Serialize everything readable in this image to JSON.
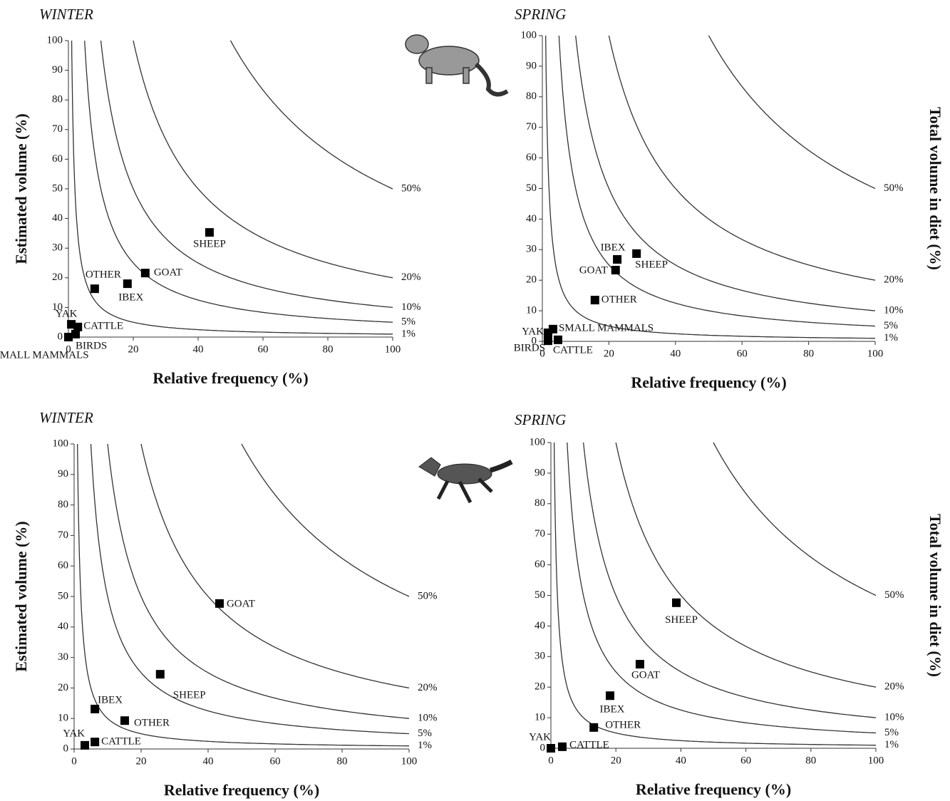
{
  "chart_data": [
    {
      "type": "scatter",
      "title": "WINTER",
      "xlabel": "Relative frequency (%)",
      "ylabel": "Estimated volume (%)",
      "xlim": [
        0,
        100
      ],
      "ylim": [
        0,
        100
      ],
      "xticks": [
        0,
        20,
        40,
        60,
        80,
        100
      ],
      "yticks": [
        0,
        10,
        20,
        30,
        40,
        50,
        60,
        70,
        80,
        90,
        100
      ],
      "color": "#000000",
      "isolines": [
        {
          "value": 50,
          "label": "50%"
        },
        {
          "value": 20,
          "label": "20%"
        },
        {
          "value": 10,
          "label": "10%"
        },
        {
          "value": 5,
          "label": "5%"
        },
        {
          "value": 1,
          "label": "1%"
        }
      ],
      "labels": [
        "SHEEP",
        "GOAT",
        "IBEX",
        "OTHER",
        "YAK",
        "CATTLE",
        "BIRDS",
        "SMALL MAMMALS"
      ],
      "x": [
        43.5,
        23.7,
        18.2,
        8.1,
        0.9,
        2.9,
        2.2,
        0
      ],
      "values": [
        35.3,
        21.6,
        18,
        16.3,
        4.3,
        3.4,
        1,
        0
      ]
    },
    {
      "type": "scatter",
      "title": "SPRING",
      "xlabel": "Relative frequency (%)",
      "isoline_label": "Total volume in diet  (%)",
      "xlim": [
        0,
        100
      ],
      "ylim": [
        0,
        100
      ],
      "xticks": [
        0,
        20,
        40,
        60,
        80,
        100
      ],
      "yticks": [
        0,
        10,
        20,
        30,
        40,
        50,
        60,
        70,
        80,
        90,
        100
      ],
      "color": "#000000",
      "isolines": [
        {
          "value": 50,
          "label": "50%"
        },
        {
          "value": 20,
          "label": "20%"
        },
        {
          "value": 10,
          "label": "10%"
        },
        {
          "value": 5,
          "label": "5%"
        },
        {
          "value": 1,
          "label": "1%"
        }
      ],
      "labels": [
        "IBEX",
        "SHEEP",
        "GOAT",
        "OTHER",
        "YAK",
        "SMALL MAMMALS",
        "BIRDS",
        "CATTLE"
      ],
      "x": [
        22.5,
        28.3,
        22,
        15.8,
        1.7,
        3.2,
        1.7,
        4.7
      ],
      "values": [
        26.8,
        28.7,
        23.3,
        13.5,
        2.8,
        4,
        0.2,
        0.5
      ]
    },
    {
      "type": "scatter",
      "title": "WINTER",
      "xlabel": "Relative frequency (%)",
      "ylabel": "Estimated volume (%)",
      "xlim": [
        0,
        100
      ],
      "ylim": [
        0,
        100
      ],
      "xticks": [
        0,
        20,
        40,
        60,
        80,
        100
      ],
      "yticks": [
        0,
        10,
        20,
        30,
        40,
        50,
        60,
        70,
        80,
        90,
        100
      ],
      "color": "#000000",
      "isolines": [
        {
          "value": 50,
          "label": "50%"
        },
        {
          "value": 20,
          "label": "20%"
        },
        {
          "value": 10,
          "label": "10%"
        },
        {
          "value": 5,
          "label": "5%"
        },
        {
          "value": 1,
          "label": "1%"
        }
      ],
      "labels": [
        "GOAT",
        "SHEEP",
        "IBEX",
        "OTHER",
        "YAK",
        "CATTLE"
      ],
      "x": [
        43.4,
        25.7,
        6.2,
        15.1,
        3.2,
        6.2
      ],
      "values": [
        47.7,
        24.5,
        13.1,
        9.3,
        1.2,
        2.3
      ]
    },
    {
      "type": "scatter",
      "title": "SPRING",
      "xlabel": "Relative frequency (%)",
      "isoline_label": "Total volume in diet  (%)",
      "xlim": [
        0,
        100
      ],
      "ylim": [
        0,
        100
      ],
      "xticks": [
        0,
        20,
        40,
        60,
        80,
        100
      ],
      "yticks": [
        0,
        10,
        20,
        30,
        40,
        50,
        60,
        70,
        80,
        90,
        100
      ],
      "color": "#000000",
      "isolines": [
        {
          "value": 50,
          "label": "50%"
        },
        {
          "value": 20,
          "label": "20%"
        },
        {
          "value": 10,
          "label": "10%"
        },
        {
          "value": 5,
          "label": "5%"
        },
        {
          "value": 1,
          "label": "1%"
        }
      ],
      "labels": [
        "SHEEP",
        "GOAT",
        "IBEX",
        "OTHER",
        "YAK",
        "CATTLE"
      ],
      "x": [
        38.6,
        27.4,
        18.2,
        13.2,
        0,
        3.5
      ],
      "values": [
        47.6,
        27.5,
        17.2,
        6.8,
        0,
        0.5
      ]
    }
  ]
}
